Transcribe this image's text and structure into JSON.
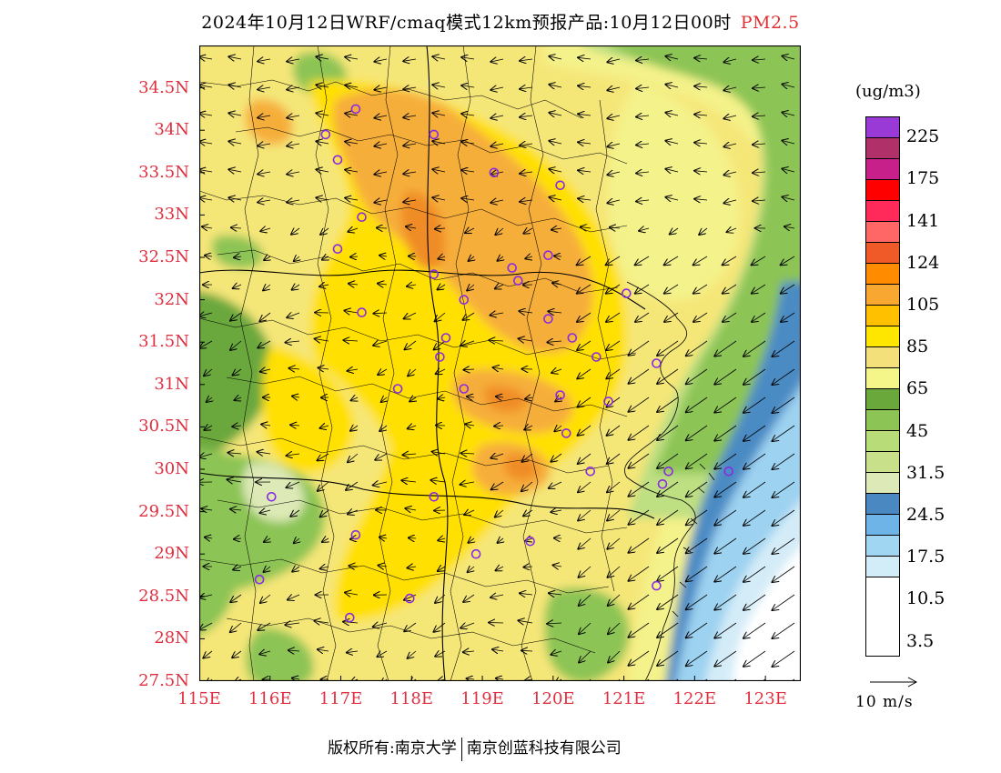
{
  "title": {
    "text": "2024年10月12日WRF/cmaq模式12km预报产品:10月12日00时",
    "species": "PM2.5"
  },
  "map": {
    "lon_range": [
      115,
      123.5
    ],
    "lat_range": [
      27.5,
      35
    ],
    "lat_labels": [
      "34.5N",
      "34N",
      "33.5N",
      "33N",
      "32.5N",
      "32N",
      "31.5N",
      "31N",
      "30.5N",
      "30N",
      "29.5N",
      "29N",
      "28.5N",
      "28N",
      "27.5N"
    ],
    "lon_labels": [
      "115E",
      "116E",
      "117E",
      "118E",
      "119E",
      "120E",
      "121E",
      "122E",
      "123E"
    ],
    "colors": {
      "sea_dark": "#4b8bc4",
      "sea_mid": "#9dd2f0",
      "sea_light": "#d4ecf8",
      "green_dark": "#6aa83c",
      "green_mid": "#8cc455",
      "green_light": "#bedf82",
      "pale_green": "#dde9b6",
      "yellow_pale": "#f4f28a",
      "yellow_lo": "#f5e678",
      "yellow": "#ffe000",
      "orange_lt": "#f6ae3a",
      "orange": "#f08c28"
    }
  },
  "legend": {
    "unit": "(ug/m3)",
    "labels": [
      "225",
      "175",
      "141",
      "124",
      "105",
      "85",
      "65",
      "45",
      "31.5",
      "24.5",
      "17.5",
      "10.5",
      "3.5"
    ],
    "colors": [
      "#9a3ad6",
      "#b0306a",
      "#c8208a",
      "#ff0000",
      "#ff2a5a",
      "#ff6666",
      "#f05a28",
      "#ff8c00",
      "#f8a830",
      "#ffc000",
      "#ffe600",
      "#f4e07a",
      "#f4f68a",
      "#6aa83c",
      "#8cc455",
      "#b8dc78",
      "#c8e08a",
      "#dde9b6",
      "#4a88c2",
      "#6fb4e6",
      "#a0d6f2",
      "#d2ecf8",
      "#ffffff"
    ]
  },
  "vector_ref": {
    "label": "10 m/s"
  },
  "footer": {
    "copyright": "版权所有:南京大学",
    "company": "南京创蓝科技有限公司"
  }
}
